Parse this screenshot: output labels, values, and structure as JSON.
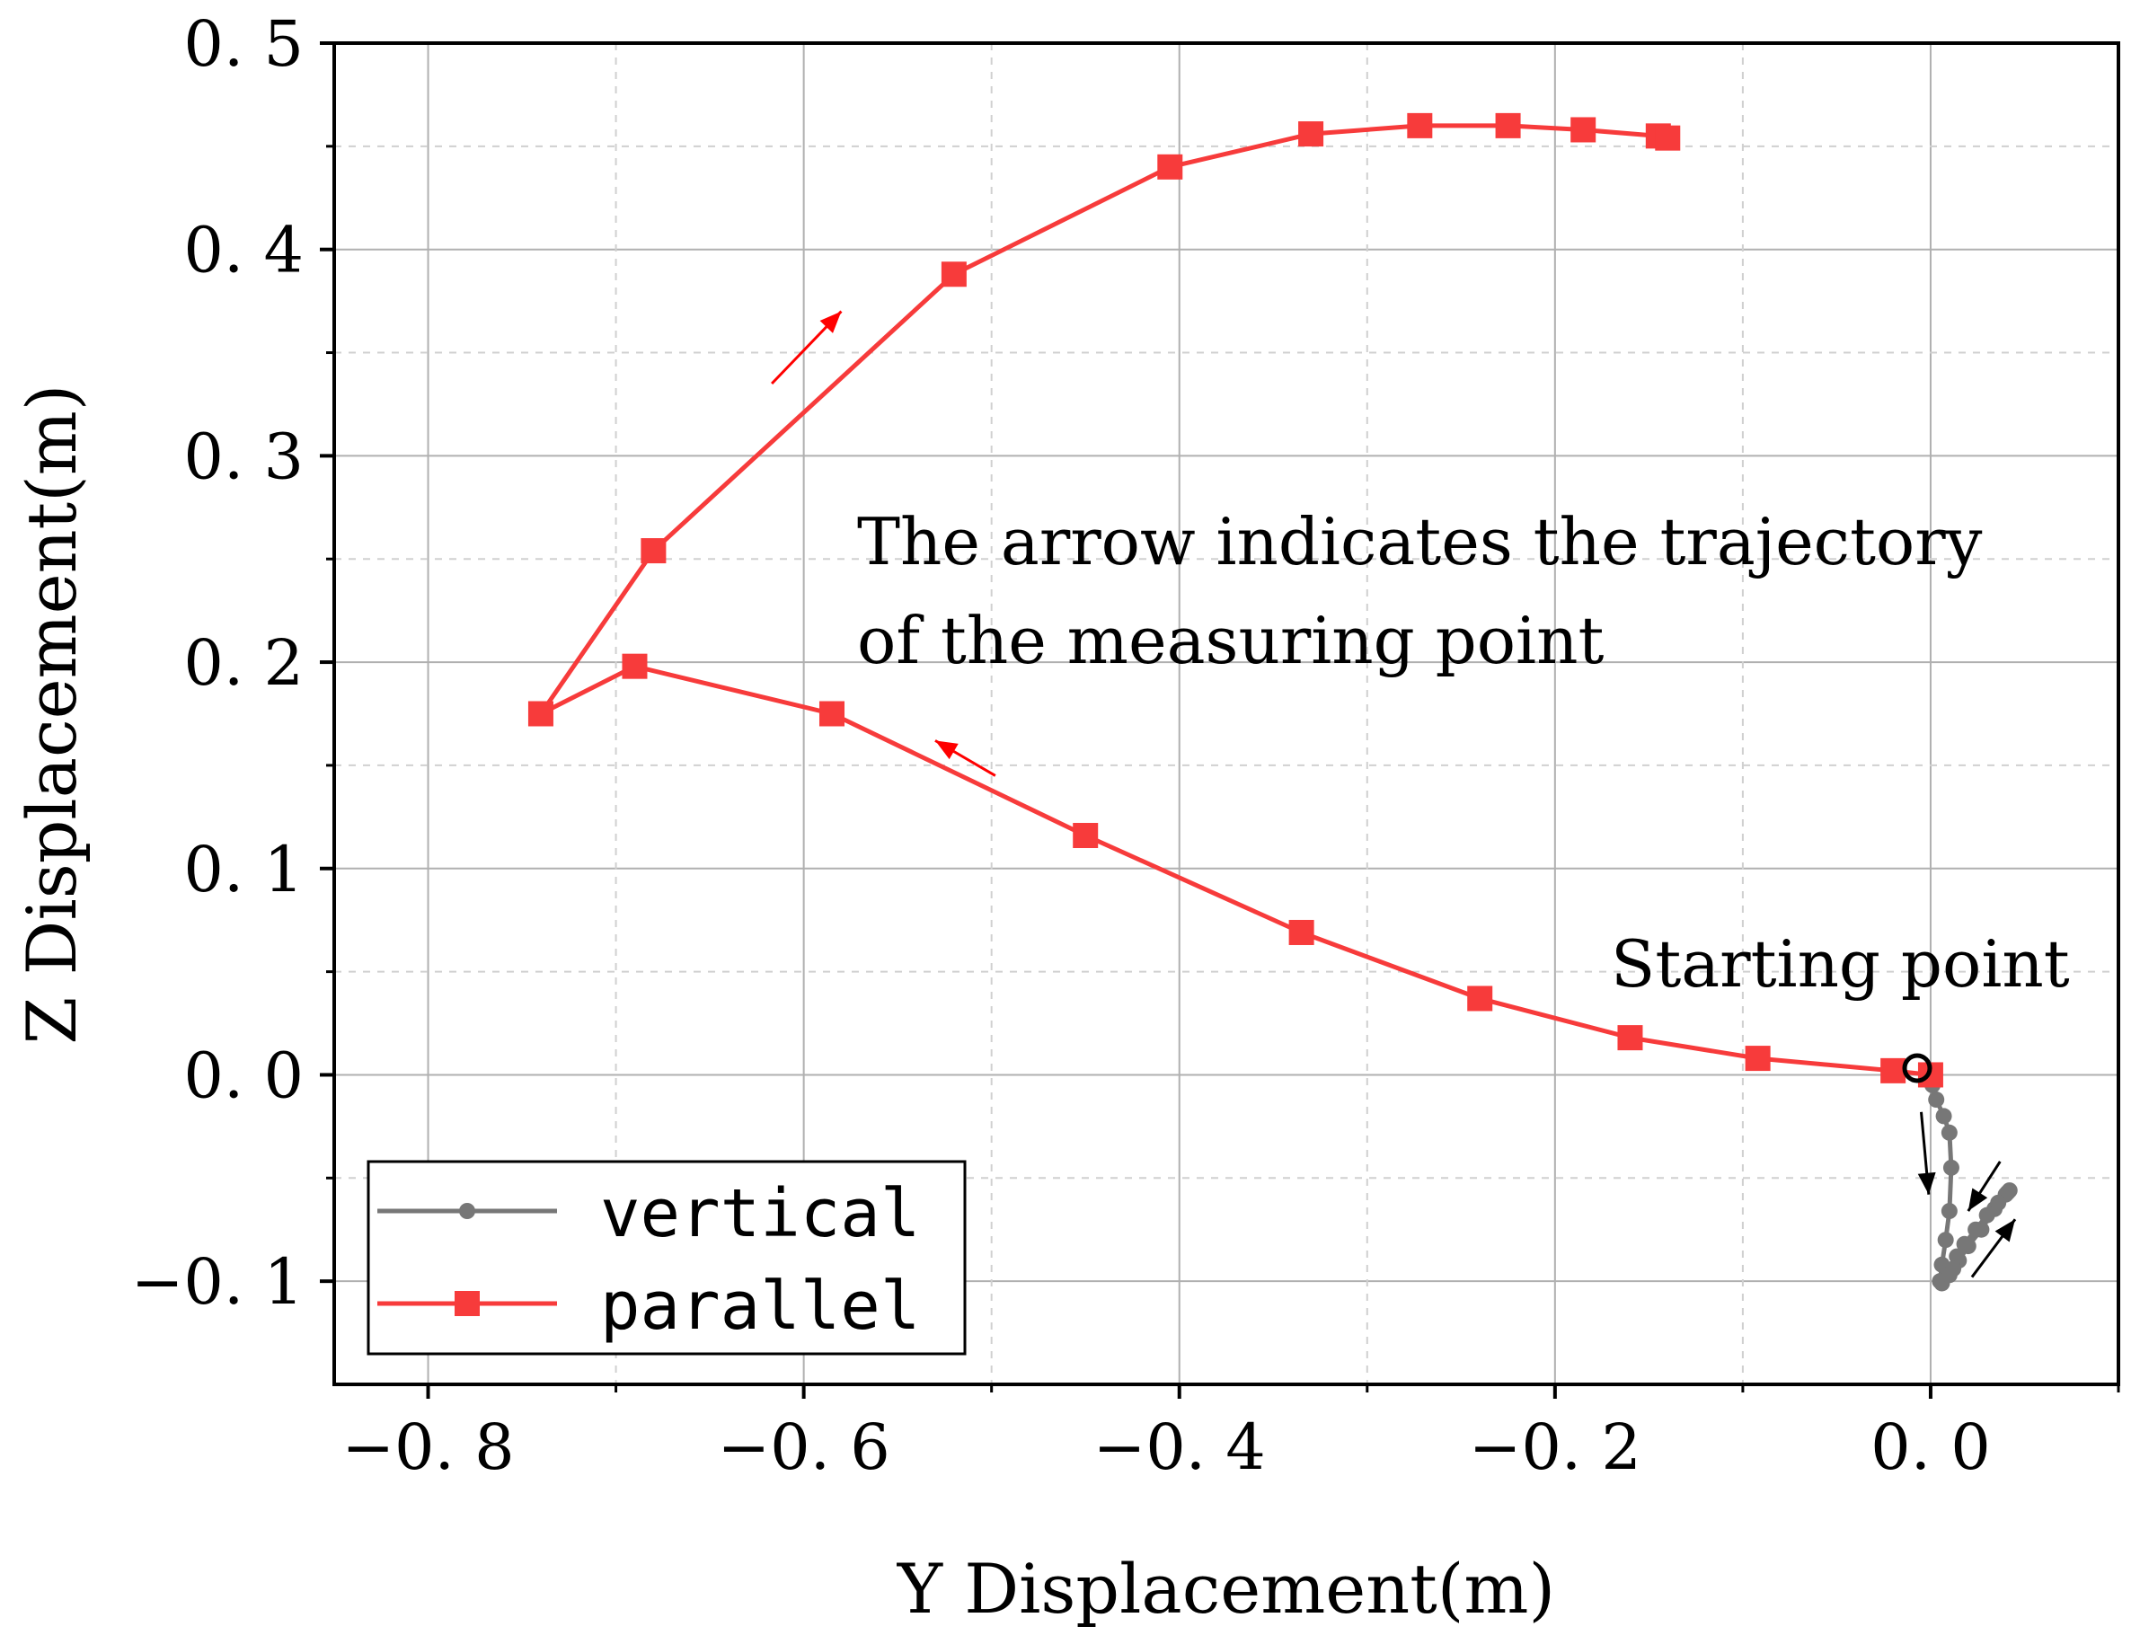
{
  "chart_data": {
    "type": "line",
    "title": "",
    "xlabel": "Y Displacement(m)",
    "ylabel": "Z Displacement(m)",
    "xlim": [
      -0.85,
      0.1
    ],
    "ylim": [
      -0.15,
      0.5
    ],
    "grid": true,
    "xticks": [
      -0.8,
      -0.6,
      -0.4,
      -0.2,
      0.0
    ],
    "xtick_labels": [
      "−0. 8",
      "−0. 6",
      "−0. 4",
      "−0. 2",
      "0. 0"
    ],
    "yticks": [
      -0.1,
      0.0,
      0.1,
      0.2,
      0.3,
      0.4,
      0.5
    ],
    "ytick_labels": [
      "−0. 1",
      "0. 0",
      "0. 1",
      "0. 2",
      "0. 3",
      "0. 4",
      "0. 5"
    ],
    "legend_position": "bottom-left",
    "series": [
      {
        "name": "vertical",
        "color": "#777777",
        "marker": "circle",
        "x": [
          0.0,
          0.001,
          0.003,
          0.007,
          0.01,
          0.011,
          0.01,
          0.008,
          0.006,
          0.005,
          0.006,
          0.01,
          0.015,
          0.02,
          0.027,
          0.034,
          0.04,
          0.042,
          0.041,
          0.036,
          0.03,
          0.024,
          0.018,
          0.014,
          0.012
        ],
        "y": [
          0.0,
          -0.005,
          -0.012,
          -0.02,
          -0.028,
          -0.045,
          -0.066,
          -0.08,
          -0.092,
          -0.1,
          -0.101,
          -0.097,
          -0.09,
          -0.083,
          -0.075,
          -0.065,
          -0.058,
          -0.056,
          -0.057,
          -0.062,
          -0.068,
          -0.075,
          -0.082,
          -0.088,
          -0.094
        ]
      },
      {
        "name": "parallel",
        "color": "#f73b3b",
        "marker": "square",
        "x": [
          0.0,
          -0.02,
          -0.092,
          -0.16,
          -0.24,
          -0.335,
          -0.45,
          -0.585,
          -0.69,
          -0.74,
          -0.68,
          -0.52,
          -0.405,
          -0.33,
          -0.272,
          -0.225,
          -0.185,
          -0.145,
          -0.14
        ],
        "y": [
          0.0,
          0.002,
          0.008,
          0.018,
          0.037,
          0.069,
          0.116,
          0.175,
          0.198,
          0.175,
          0.254,
          0.388,
          0.44,
          0.456,
          0.46,
          0.46,
          0.458,
          0.455,
          0.454
        ]
      }
    ],
    "annotations": {
      "trajectory_note_line1": "The arrow indicates the trajectory",
      "trajectory_note_line2": "of the measuring point",
      "starting_point_label": "Starting point"
    }
  }
}
